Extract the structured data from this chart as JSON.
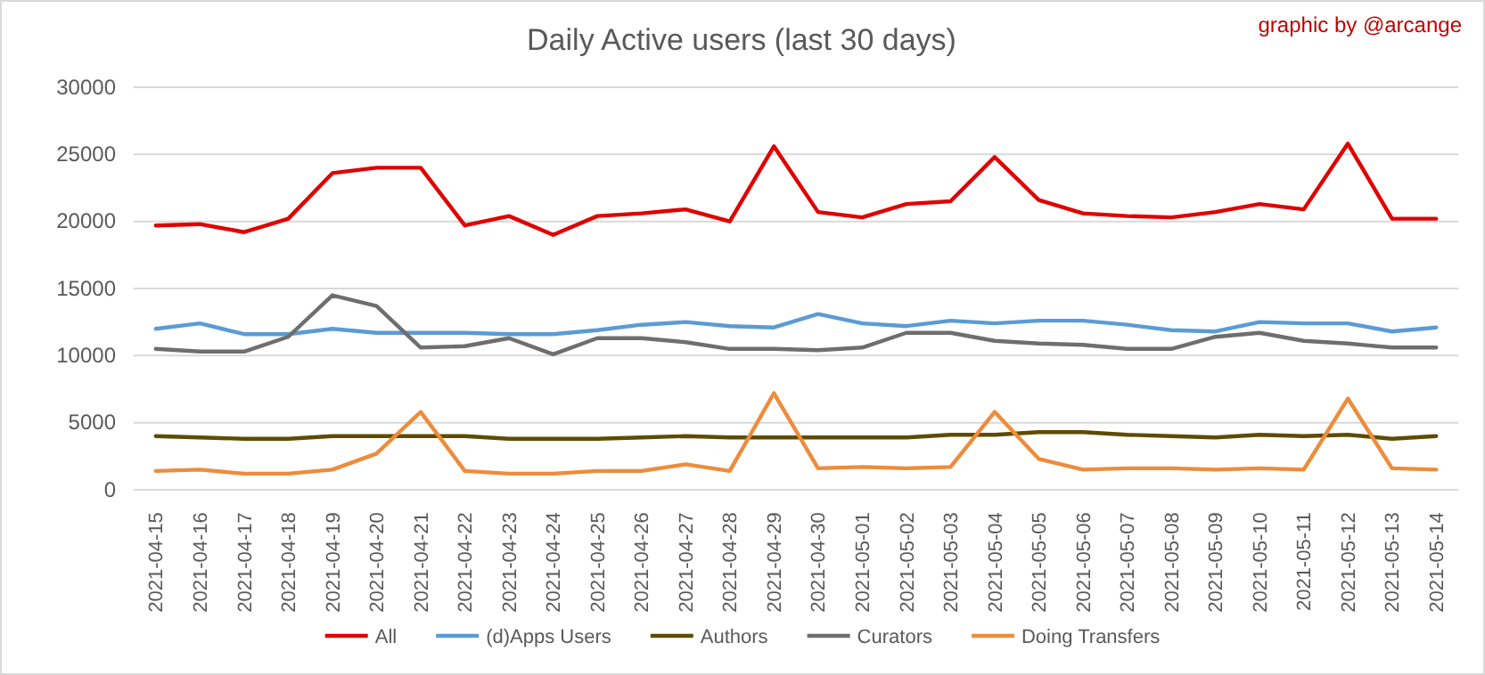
{
  "chart_data": {
    "type": "line",
    "title": "Daily Active users (last 30 days)",
    "annotations": [
      "graphic by @arcange"
    ],
    "categories": [
      "2021-04-15",
      "2021-04-16",
      "2021-04-17",
      "2021-04-18",
      "2021-04-19",
      "2021-04-20",
      "2021-04-21",
      "2021-04-22",
      "2021-04-23",
      "2021-04-24",
      "2021-04-25",
      "2021-04-26",
      "2021-04-27",
      "2021-04-28",
      "2021-04-29",
      "2021-04-30",
      "2021-05-01",
      "2021-05-02",
      "2021-05-03",
      "2021-05-04",
      "2021-05-05",
      "2021-05-06",
      "2021-05-07",
      "2021-05-08",
      "2021-05-09",
      "2021-05-10",
      "2021-05-11",
      "2021-05-12",
      "2021-05-13",
      "2021-05-14"
    ],
    "series": [
      {
        "name": "All",
        "color": "#e00000",
        "values": [
          19700,
          19800,
          19200,
          20200,
          23600,
          24000,
          24000,
          19700,
          20400,
          19000,
          20400,
          20600,
          20900,
          20000,
          25600,
          20700,
          20300,
          21300,
          21500,
          24800,
          21600,
          20600,
          20400,
          20300,
          20700,
          21300,
          20900,
          25800,
          20200,
          20200
        ]
      },
      {
        "name": "(d)Apps Users",
        "color": "#5b9bd5",
        "values": [
          12000,
          12400,
          11600,
          11600,
          12000,
          11700,
          11700,
          11700,
          11600,
          11600,
          11900,
          12300,
          12500,
          12200,
          12100,
          13100,
          12400,
          12200,
          12600,
          12400,
          12600,
          12600,
          12300,
          11900,
          11800,
          12500,
          12400,
          12400,
          11800,
          12100
        ]
      },
      {
        "name": "Authors",
        "color": "#5f4b00",
        "values": [
          4000,
          3900,
          3800,
          3800,
          4000,
          4000,
          4000,
          4000,
          3800,
          3800,
          3800,
          3900,
          4000,
          3900,
          3900,
          3900,
          3900,
          3900,
          4100,
          4100,
          4300,
          4300,
          4100,
          4000,
          3900,
          4100,
          4000,
          4100,
          3800,
          4000
        ]
      },
      {
        "name": "Curators",
        "color": "#6e6e6e",
        "values": [
          10500,
          10300,
          10300,
          11400,
          14500,
          13700,
          10600,
          10700,
          11300,
          10100,
          11300,
          11300,
          11000,
          10500,
          10500,
          10400,
          10600,
          11700,
          11700,
          11100,
          10900,
          10800,
          10500,
          10500,
          11400,
          11700,
          11100,
          10900,
          10600,
          10600
        ]
      },
      {
        "name": "Doing Transfers",
        "color": "#ed8c3b",
        "values": [
          1400,
          1500,
          1200,
          1200,
          1500,
          2700,
          5800,
          1400,
          1200,
          1200,
          1400,
          1400,
          1900,
          1400,
          7200,
          1600,
          1700,
          1600,
          1700,
          5800,
          2300,
          1500,
          1600,
          1600,
          1500,
          1600,
          1500,
          6800,
          1600,
          1500
        ]
      }
    ],
    "ylim": [
      0,
      30000
    ],
    "yticks": [
      0,
      5000,
      10000,
      15000,
      20000,
      25000,
      30000
    ],
    "grid": "y",
    "legend": "bottom",
    "marker": "none",
    "line_style": "solid"
  }
}
